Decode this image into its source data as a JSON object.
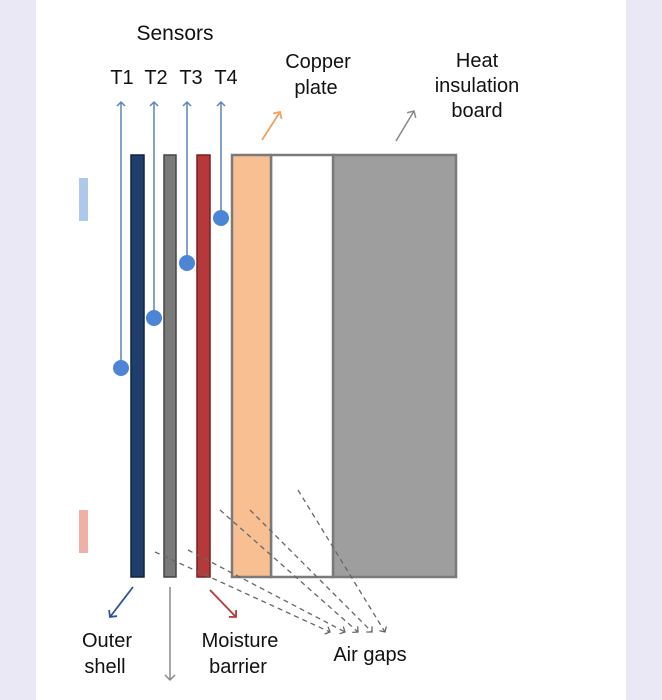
{
  "labels": {
    "sensors": "Sensors",
    "t1": "T1",
    "t2": "T2",
    "t3": "T3",
    "t4": "T4",
    "copper_line1": "Copper",
    "copper_line2": "plate",
    "heat_line1": "Heat",
    "heat_line2": "insulation",
    "heat_line3": "board",
    "outer_line1": "Outer",
    "outer_line2": "shell",
    "moisture_line1": "Moisture",
    "moisture_line2": "barrier",
    "air_gaps": "Air gaps"
  },
  "colors": {
    "outer_shell": "#1f3e6e",
    "gray_layer": "#777777",
    "moisture_barrier": "#b5393a",
    "copper_plate": "#f8bf93",
    "insulation_board": "#9e9e9e",
    "sensor_dot": "#4d85d6",
    "sensor_line": "#5c84b8",
    "marker_blue": "#aec8ea",
    "marker_red": "#efb0a8"
  }
}
